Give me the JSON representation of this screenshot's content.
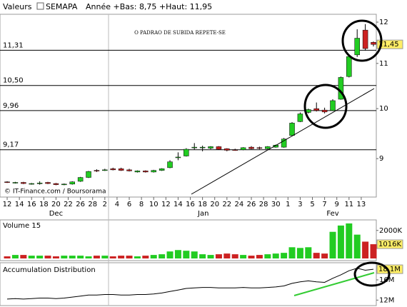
{
  "header": {
    "label": "Valeurs",
    "symbol": "SEMAPA",
    "range": "Année +Bas: 8,75 +Haut: 11,95"
  },
  "chart_data": [
    {
      "type": "candlestick",
      "annotation": "O PADRAO DE SUBIDA REPETE-SE",
      "source": "© IT-Finance.com / Boursorama",
      "x": [
        0,
        1,
        2,
        3,
        4,
        5,
        6,
        7,
        8,
        9,
        10,
        11,
        12,
        13,
        14,
        15,
        16,
        17,
        18,
        19,
        20,
        21,
        22,
        23,
        24,
        25,
        26,
        27,
        28,
        29,
        30,
        31,
        32,
        33,
        34,
        35,
        36,
        37,
        38,
        39,
        40,
        41,
        42,
        43,
        44,
        45
      ],
      "open": [
        8.57,
        8.55,
        8.56,
        8.53,
        8.55,
        8.56,
        8.54,
        8.52,
        8.53,
        8.58,
        8.65,
        8.78,
        8.79,
        8.81,
        8.81,
        8.79,
        8.75,
        8.77,
        8.75,
        8.78,
        8.83,
        9.02,
        9.05,
        9.22,
        9.22,
        9.2,
        9.23,
        9.19,
        9.17,
        9.17,
        9.22,
        9.21,
        9.19,
        9.22,
        9.22,
        9.45,
        9.73,
        9.92,
        10.0,
        9.97,
        9.96,
        10.2,
        10.7,
        11.2,
        11.8,
        11.5
      ],
      "high": [
        8.58,
        8.57,
        8.57,
        8.55,
        8.58,
        8.57,
        8.55,
        8.54,
        8.58,
        8.66,
        8.77,
        8.8,
        8.81,
        8.83,
        8.83,
        8.81,
        8.78,
        8.78,
        8.79,
        8.82,
        8.97,
        9.12,
        9.2,
        9.3,
        9.25,
        9.24,
        9.24,
        9.2,
        9.19,
        9.22,
        9.24,
        9.23,
        9.24,
        9.27,
        9.4,
        9.72,
        9.92,
        10.0,
        10.13,
        10.02,
        10.2,
        10.7,
        11.2,
        11.82,
        11.95,
        11.52
      ],
      "low": [
        8.55,
        8.54,
        8.53,
        8.52,
        8.52,
        8.53,
        8.51,
        8.51,
        8.52,
        8.57,
        8.64,
        8.75,
        8.77,
        8.78,
        8.77,
        8.76,
        8.74,
        8.74,
        8.74,
        8.77,
        8.82,
        8.97,
        9.04,
        9.17,
        9.14,
        9.18,
        9.17,
        9.14,
        9.15,
        9.16,
        9.18,
        9.18,
        9.18,
        9.21,
        9.21,
        9.43,
        9.72,
        9.9,
        9.94,
        9.9,
        9.95,
        10.19,
        10.68,
        11.15,
        11.3,
        11.4
      ],
      "close": [
        8.56,
        8.56,
        8.54,
        8.54,
        8.55,
        8.54,
        8.52,
        8.53,
        8.57,
        8.65,
        8.76,
        8.77,
        8.79,
        8.79,
        8.78,
        8.77,
        8.77,
        8.75,
        8.78,
        8.81,
        8.94,
        9.03,
        9.18,
        9.22,
        9.22,
        9.23,
        9.18,
        9.16,
        9.16,
        9.21,
        9.19,
        9.2,
        9.23,
        9.26,
        9.38,
        9.7,
        9.89,
        9.98,
        9.96,
        9.93,
        10.17,
        10.68,
        11.16,
        11.6,
        11.35,
        11.45
      ],
      "up_color": "#22cc22",
      "down_color": "#cc2222",
      "xlim": [
        -0.88,
        45.35
      ],
      "xticks": [
        {
          "value": 0,
          "label": "12"
        },
        {
          "value": 1.5,
          "label": "14"
        },
        {
          "value": 3,
          "label": "16"
        },
        {
          "value": 4.5,
          "label": "18"
        },
        {
          "value": 6,
          "label": "20"
        },
        {
          "value": 7.5,
          "label": "22"
        },
        {
          "value": 9,
          "label": "26"
        },
        {
          "value": 10.5,
          "label": "28"
        },
        {
          "value": 12,
          "label": "2"
        },
        {
          "value": 13.5,
          "label": "4"
        },
        {
          "value": 15,
          "label": "6"
        },
        {
          "value": 16.5,
          "label": "8"
        },
        {
          "value": 18,
          "label": "10"
        },
        {
          "value": 19.5,
          "label": "12"
        },
        {
          "value": 21,
          "label": "14"
        },
        {
          "value": 22.5,
          "label": "16"
        },
        {
          "value": 24,
          "label": "18"
        },
        {
          "value": 25.5,
          "label": "20"
        },
        {
          "value": 27,
          "label": "22"
        },
        {
          "value": 28.5,
          "label": "24"
        },
        {
          "value": 30,
          "label": "26"
        },
        {
          "value": 31.5,
          "label": "28"
        },
        {
          "value": 33,
          "label": "30"
        },
        {
          "value": 34.5,
          "label": "1"
        },
        {
          "value": 36,
          "label": "3"
        },
        {
          "value": 37.5,
          "label": "5"
        },
        {
          "value": 39,
          "label": "7"
        },
        {
          "value": 40.5,
          "label": "9"
        },
        {
          "value": 42,
          "label": "11"
        },
        {
          "value": 43.5,
          "label": "13"
        }
      ],
      "month_ticks": [
        {
          "value": 6,
          "label": "Dec"
        },
        {
          "value": 24.1,
          "label": "Jan"
        },
        {
          "value": 40,
          "label": "Fev"
        }
      ],
      "ylim": [
        8.3,
        12.2
      ],
      "log_scale": true,
      "yticks": [
        9,
        10,
        11,
        12
      ],
      "levels": [
        {
          "value": 11.31,
          "label": "11,31"
        },
        {
          "value": 10.5,
          "label": "10,50"
        },
        {
          "value": 9.96,
          "label": "9,96"
        },
        {
          "value": 9.17,
          "label": "9,17"
        }
      ],
      "last_value": {
        "value": 11.45,
        "label": "11,45"
      }
    },
    {
      "type": "bar",
      "title": "Volume 15",
      "x": [
        0,
        1,
        2,
        3,
        4,
        5,
        6,
        7,
        8,
        9,
        10,
        11,
        12,
        13,
        14,
        15,
        16,
        17,
        18,
        19,
        20,
        21,
        22,
        23,
        24,
        25,
        26,
        27,
        28,
        29,
        30,
        31,
        32,
        33,
        34,
        35,
        36,
        37,
        38,
        39,
        40,
        41,
        42,
        43,
        44,
        45
      ],
      "values": [
        150,
        250,
        250,
        200,
        200,
        200,
        150,
        200,
        200,
        200,
        150,
        200,
        200,
        150,
        200,
        200,
        150,
        200,
        250,
        300,
        500,
        600,
        550,
        500,
        300,
        250,
        300,
        350,
        300,
        250,
        200,
        250,
        300,
        350,
        400,
        800,
        750,
        800,
        400,
        350,
        1900,
        2350,
        2500,
        1700,
        1200,
        1016
      ],
      "ylim": [
        0,
        2650
      ],
      "yticks": [
        {
          "value": 2000,
          "label": "2000K"
        }
      ],
      "last_value": {
        "value": 1016,
        "label": "1016K"
      }
    },
    {
      "type": "line",
      "title": "Accumulation Distribution",
      "color": "#000000",
      "x": [
        0,
        1,
        2,
        3,
        4,
        5,
        6,
        7,
        8,
        9,
        10,
        11,
        12,
        13,
        14,
        15,
        16,
        17,
        18,
        19,
        20,
        21,
        22,
        23,
        24,
        25,
        26,
        27,
        28,
        29,
        30,
        31,
        32,
        33,
        34,
        35,
        36,
        37,
        38,
        39,
        40,
        41,
        42,
        43,
        44,
        45
      ],
      "values": [
        12.2,
        12.3,
        12.2,
        12.3,
        12.4,
        12.4,
        12.3,
        12.4,
        12.6,
        12.8,
        13.0,
        13.0,
        13.1,
        13.1,
        13.0,
        13.0,
        13.1,
        13.1,
        13.2,
        13.4,
        13.7,
        14.0,
        14.3,
        14.4,
        14.5,
        14.5,
        14.4,
        14.4,
        14.4,
        14.5,
        14.4,
        14.4,
        14.5,
        14.6,
        14.8,
        15.3,
        15.6,
        15.8,
        15.6,
        15.5,
        16.3,
        17.0,
        17.8,
        18.3,
        17.9,
        18.1
      ],
      "ylim": [
        11.2,
        19.1
      ],
      "yticks": [
        {
          "value": 16,
          "label": "16M"
        },
        {
          "value": 12,
          "label": "12M"
        }
      ],
      "last_value": {
        "value": 18.1,
        "label": "18,1M"
      }
    }
  ]
}
